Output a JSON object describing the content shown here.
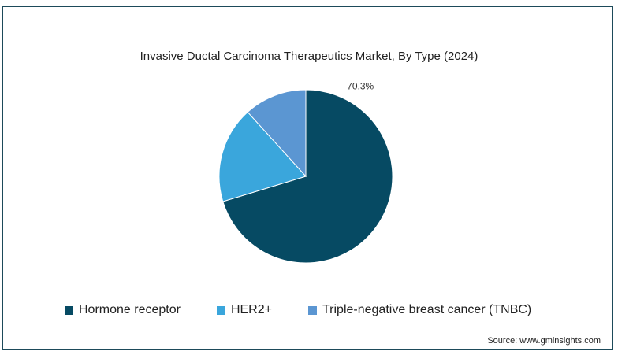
{
  "chart_data": {
    "type": "pie",
    "title": "Invasive Ductal Carcinoma Therapeutics Market, By Type (2024)",
    "categories": [
      "Hormone receptor",
      "HER2+",
      "Triple-negative breast cancer (TNBC)"
    ],
    "values": [
      70.3,
      18.0,
      11.7
    ],
    "unit": "%",
    "data_labels": [
      "70.3%",
      "",
      ""
    ],
    "colors": [
      "#064a63",
      "#3aa6dc",
      "#5b96d2"
    ],
    "legend_position": "bottom"
  },
  "source": "Source: www.gminsights.com",
  "frame_color": "#1d4a5a"
}
